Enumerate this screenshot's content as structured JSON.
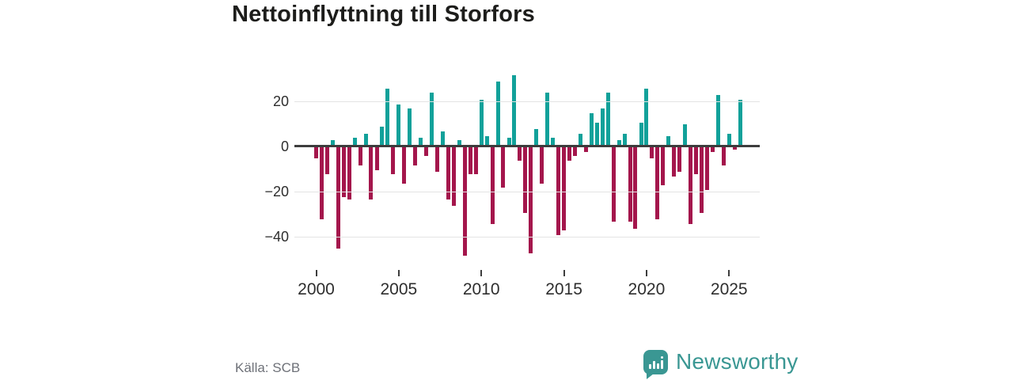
{
  "title": "Nettoinflyttning till Storfors",
  "source": "Källa: SCB",
  "logo": {
    "text": "Newsworthy",
    "icon": "newsworthy-speech-bubble-barchart-icon",
    "color": "#3a9793"
  },
  "colors": {
    "positive_bar": "#12a19a",
    "negative_bar": "#a4164c",
    "zero_line": "#3d3d3d",
    "gridline": "#e3e3e3",
    "title_text": "#1d1d1b",
    "axis_text": "#2e2e2e",
    "source_text": "#6e7178"
  },
  "chart_data": {
    "type": "bar",
    "title": "Nettoinflyttning till Storfors",
    "xlabel": "",
    "ylabel": "",
    "ylim": [
      -52,
      34
    ],
    "grid": true,
    "legend": "none",
    "y_ticks": [
      {
        "value": 20,
        "label": "20"
      },
      {
        "value": 0,
        "label": "0"
      },
      {
        "value": -20,
        "label": "−20"
      },
      {
        "value": -40,
        "label": "−40"
      }
    ],
    "x_ticks": [
      {
        "year": 2000,
        "label": "2000"
      },
      {
        "year": 2005,
        "label": "2005"
      },
      {
        "year": 2010,
        "label": "2010"
      },
      {
        "year": 2015,
        "label": "2015"
      },
      {
        "year": 2020,
        "label": "2020"
      },
      {
        "year": 2025,
        "label": "2025"
      }
    ],
    "periods_per_year": 3,
    "x": [
      2000.0,
      2000.33,
      2000.67,
      2001.0,
      2001.33,
      2001.67,
      2002.0,
      2002.33,
      2002.67,
      2003.0,
      2003.33,
      2003.67,
      2004.0,
      2004.33,
      2004.67,
      2005.0,
      2005.33,
      2005.67,
      2006.0,
      2006.33,
      2006.67,
      2007.0,
      2007.33,
      2007.67,
      2008.0,
      2008.33,
      2008.67,
      2009.0,
      2009.33,
      2009.67,
      2010.0,
      2010.33,
      2010.67,
      2011.0,
      2011.33,
      2011.67,
      2012.0,
      2012.33,
      2012.67,
      2013.0,
      2013.33,
      2013.67,
      2014.0,
      2014.33,
      2014.67,
      2015.0,
      2015.33,
      2015.67,
      2016.0,
      2016.33,
      2016.67,
      2017.0,
      2017.33,
      2017.67,
      2018.0,
      2018.33,
      2018.67,
      2019.0,
      2019.33,
      2019.67,
      2020.0,
      2020.33,
      2020.67,
      2021.0,
      2021.33,
      2021.67,
      2022.0,
      2022.33,
      2022.67,
      2023.0,
      2023.33,
      2023.67,
      2024.0,
      2024.33,
      2024.67,
      2025.0,
      2025.33,
      2025.67
    ],
    "values": [
      -5,
      -32,
      -12,
      2,
      -45,
      -22,
      -23,
      3,
      -8,
      5,
      -23,
      -10,
      8,
      25,
      -12,
      18,
      -16,
      16,
      -8,
      3,
      -4,
      23,
      -11,
      6,
      -23,
      -26,
      2,
      -48,
      -12,
      -12,
      20,
      4,
      -34,
      28,
      -18,
      3,
      31,
      -6,
      -29,
      -47,
      7,
      -16,
      23,
      3,
      -39,
      -37,
      -6,
      -4,
      5,
      -2,
      14,
      10,
      16,
      23,
      -33,
      2,
      5,
      -33,
      -36,
      10,
      25,
      -5,
      -32,
      -17,
      4,
      -13,
      -11,
      9,
      -34,
      -12,
      -29,
      -19,
      -2,
      22,
      -8,
      5,
      -1,
      20
    ]
  }
}
